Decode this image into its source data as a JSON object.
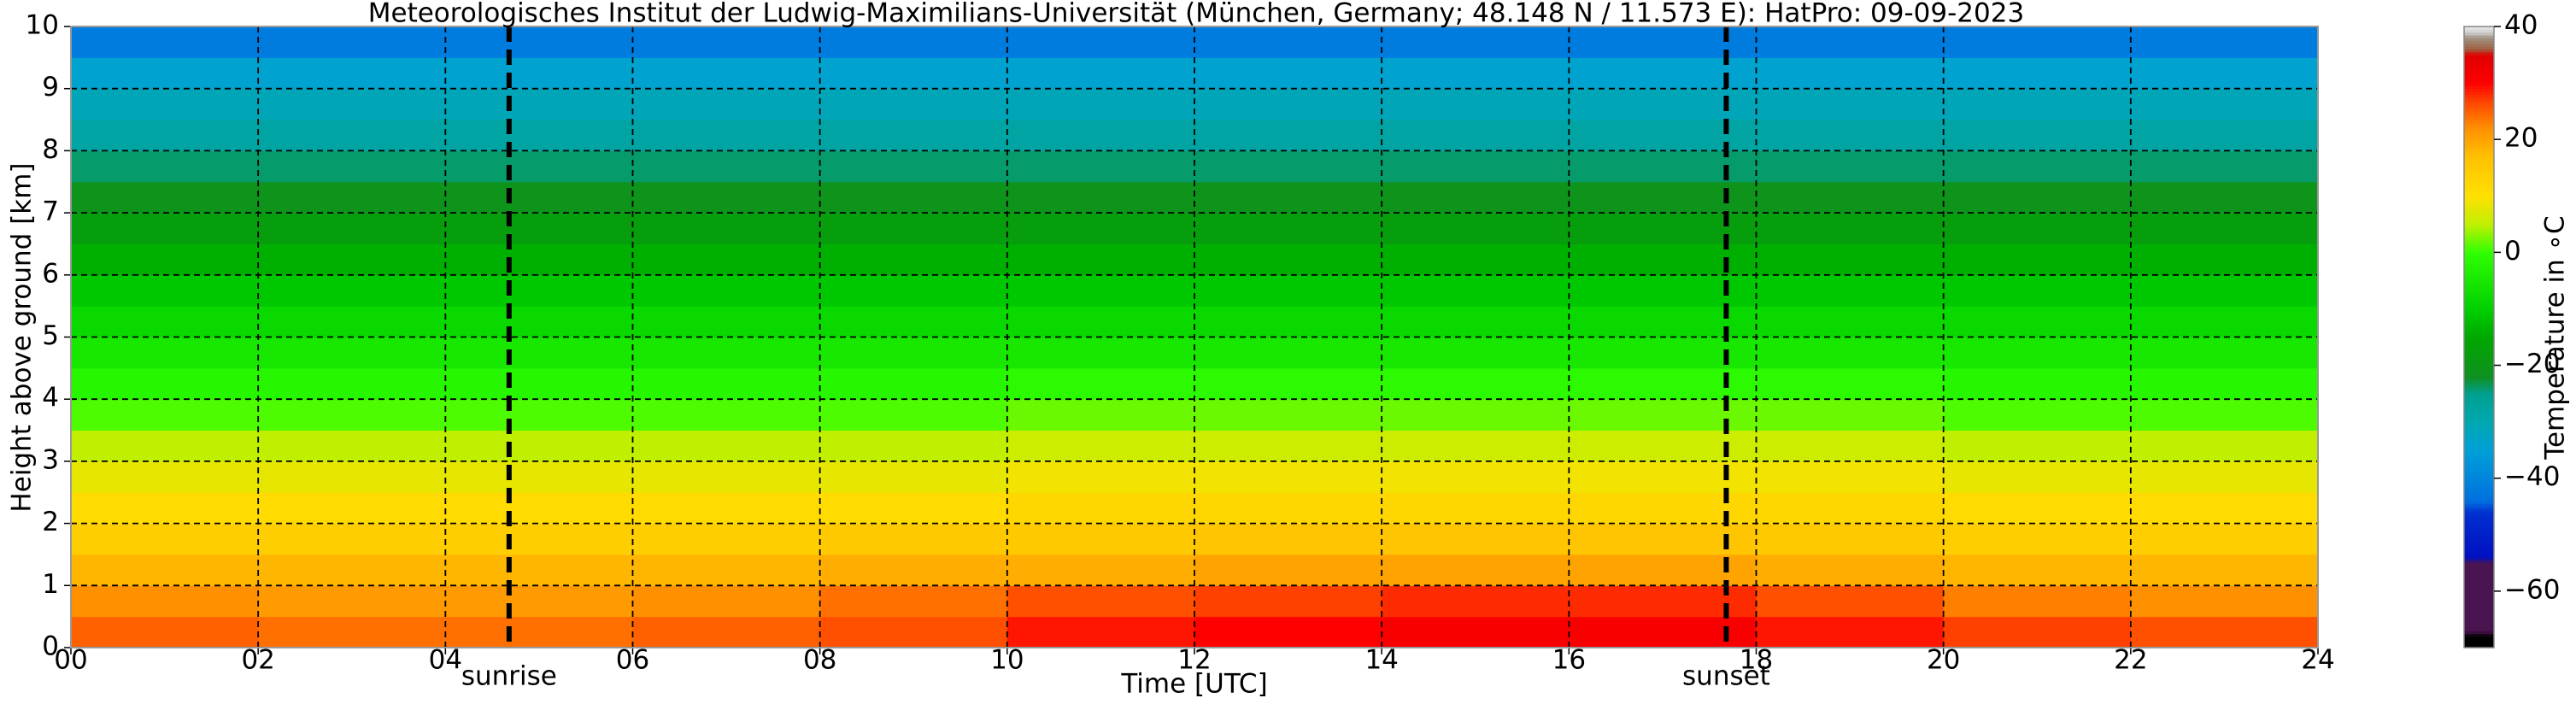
{
  "chart_data": {
    "type": "heatmap",
    "title": "Meteorologisches Institut der Ludwig-Maximilians-Universität (München, Germany; 48.148 N / 11.573 E):    HatPro: 09-09-2023",
    "x_label": "Time [UTC]",
    "y_label": "Height above ground [km]",
    "colorbar_label": "Temperature in ∘C",
    "xlim": [
      0,
      24
    ],
    "ylim": [
      0,
      10
    ],
    "xticks": [
      {
        "value": 0,
        "label": "00"
      },
      {
        "value": 2,
        "label": "02"
      },
      {
        "value": 4,
        "label": "04"
      },
      {
        "value": 6,
        "label": "06"
      },
      {
        "value": 8,
        "label": "08"
      },
      {
        "value": 10,
        "label": "10"
      },
      {
        "value": 12,
        "label": "12"
      },
      {
        "value": 14,
        "label": "14"
      },
      {
        "value": 16,
        "label": "16"
      },
      {
        "value": 18,
        "label": "18"
      },
      {
        "value": 20,
        "label": "20"
      },
      {
        "value": 22,
        "label": "22"
      },
      {
        "value": 24,
        "label": "24"
      }
    ],
    "yticks": [
      0,
      1,
      2,
      3,
      4,
      5,
      6,
      7,
      8,
      9,
      10
    ],
    "clim": [
      -70,
      40
    ],
    "cticks": [
      {
        "value": -60,
        "label": "−60"
      },
      {
        "value": -40,
        "label": "−40"
      },
      {
        "value": -20,
        "label": "−20"
      },
      0,
      20,
      40
    ],
    "grid": true,
    "vlines": [
      {
        "x": 4.68,
        "label": "sunrise"
      },
      {
        "x": 17.68,
        "label": "sunset"
      }
    ],
    "colormap": [
      {
        "value": -70,
        "color": "#000000"
      },
      {
        "value": -68,
        "color": "#000000"
      },
      {
        "value": -67,
        "color": "#4a1450"
      },
      {
        "value": -55,
        "color": "#4a1450"
      },
      {
        "value": -54,
        "color": "#0010c0"
      },
      {
        "value": -46,
        "color": "#0030d0"
      },
      {
        "value": -44,
        "color": "#0070e0"
      },
      {
        "value": -35,
        "color": "#00a0d8"
      },
      {
        "value": -30,
        "color": "#00a8b0"
      },
      {
        "value": -25,
        "color": "#00a090"
      },
      {
        "value": -22,
        "color": "#109020"
      },
      {
        "value": -15,
        "color": "#00a800"
      },
      {
        "value": -10,
        "color": "#00d000"
      },
      {
        "value": 0,
        "color": "#30ff00"
      },
      {
        "value": 5,
        "color": "#c0f000"
      },
      {
        "value": 10,
        "color": "#ffe000"
      },
      {
        "value": 17,
        "color": "#ffc000"
      },
      {
        "value": 22,
        "color": "#ff9000"
      },
      {
        "value": 27,
        "color": "#ff4000"
      },
      {
        "value": 30,
        "color": "#ff0000"
      },
      {
        "value": 35,
        "color": "#e00000"
      },
      {
        "value": 36,
        "color": "#a06040"
      },
      {
        "value": 38,
        "color": "#a09080"
      },
      {
        "value": 39,
        "color": "#d0d0d0"
      },
      {
        "value": 40,
        "color": "#e8e8e8"
      }
    ],
    "x_bins": [
      0,
      2,
      4,
      6,
      8,
      10,
      12,
      14,
      16,
      18,
      20,
      22,
      24
    ],
    "y_bins": [
      0,
      0.5,
      1,
      1.5,
      2,
      2.5,
      3,
      3.5,
      4,
      4.5,
      5,
      5.5,
      6,
      6.5,
      7,
      7.5,
      8,
      8.5,
      9,
      9.5,
      10
    ],
    "values": [
      [
        25,
        24,
        24,
        25,
        26,
        29,
        30,
        31,
        31,
        29,
        27,
        26
      ],
      [
        22,
        21,
        21,
        22,
        24,
        26,
        27,
        28,
        28,
        26,
        23,
        22
      ],
      [
        18,
        18,
        18,
        18,
        19,
        19,
        20,
        20,
        20,
        19,
        18,
        18
      ],
      [
        14,
        14,
        14,
        14,
        15,
        15,
        16,
        16,
        16,
        15,
        14,
        14
      ],
      [
        11,
        11,
        11,
        11,
        11,
        12,
        12,
        12,
        12,
        12,
        11,
        11
      ],
      [
        8,
        8,
        8,
        8,
        8,
        9,
        9,
        9,
        9,
        9,
        8,
        8
      ],
      [
        5,
        5,
        5,
        5,
        5,
        6,
        6,
        6,
        6,
        6,
        5,
        5
      ],
      [
        1,
        1,
        1,
        1,
        1,
        2,
        2,
        2,
        2,
        2,
        1,
        1
      ],
      [
        -2,
        -2,
        -2,
        -2,
        -2,
        -1,
        -1,
        -1,
        -1,
        -1,
        -2,
        -2
      ],
      [
        -5,
        -5,
        -5,
        -5,
        -5,
        -5,
        -5,
        -5,
        -5,
        -5,
        -5,
        -5
      ],
      [
        -8,
        -8,
        -8,
        -8,
        -8,
        -8,
        -8,
        -8,
        -8,
        -8,
        -8,
        -8
      ],
      [
        -11,
        -11,
        -11,
        -11,
        -11,
        -11,
        -11,
        -11,
        -11,
        -11,
        -11,
        -11
      ],
      [
        -14,
        -14,
        -14,
        -14,
        -14,
        -14,
        -14,
        -14,
        -14,
        -14,
        -14,
        -14
      ],
      [
        -18,
        -18,
        -18,
        -18,
        -18,
        -18,
        -18,
        -18,
        -18,
        -18,
        -18,
        -18
      ],
      [
        -21,
        -21,
        -21,
        -21,
        -21,
        -21,
        -21,
        -21,
        -21,
        -21,
        -21,
        -21
      ],
      [
        -24,
        -24,
        -24,
        -24,
        -24,
        -24,
        -24,
        -24,
        -24,
        -24,
        -24,
        -24
      ],
      [
        -28,
        -28,
        -28,
        -28,
        -28,
        -28,
        -28,
        -28,
        -28,
        -28,
        -28,
        -28
      ],
      [
        -31,
        -31,
        -31,
        -31,
        -31,
        -31,
        -31,
        -31,
        -31,
        -31,
        -31,
        -31
      ],
      [
        -34,
        -34,
        -34,
        -34,
        -34,
        -34,
        -34,
        -34,
        -34,
        -34,
        -34,
        -34
      ],
      [
        -42,
        -42,
        -42,
        -42,
        -42,
        -42,
        -42,
        -42,
        -42,
        -42,
        -42,
        -42
      ]
    ]
  }
}
